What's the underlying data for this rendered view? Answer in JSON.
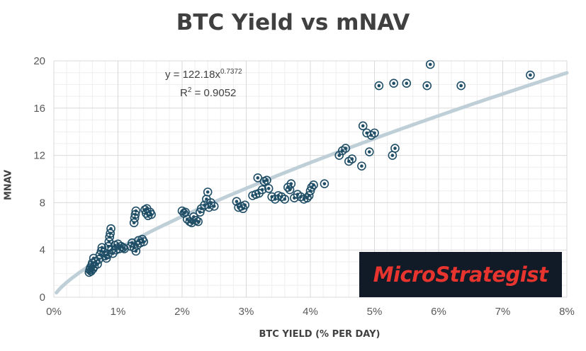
{
  "chart_data": {
    "type": "scatter",
    "title": "BTC Yield vs mNAV",
    "xlabel": "BTC YIELD (% PER DAY)",
    "ylabel": "MNAV",
    "xlim": [
      0,
      8
    ],
    "ylim": [
      0,
      20
    ],
    "x_ticks": [
      "0%",
      "1%",
      "2%",
      "3%",
      "4%",
      "5%",
      "6%",
      "7%",
      "8%"
    ],
    "y_ticks": [
      "0",
      "4",
      "8",
      "12",
      "16",
      "20"
    ],
    "grid": true,
    "trendline": {
      "type": "power",
      "coefficient": 122.18,
      "exponent": 0.7372,
      "equation_prefix": "y = 122.18x",
      "equation_exponent": "0.7372",
      "r2_prefix": "R",
      "r2_exponent": "2",
      "r2_value": " = 0.9052"
    },
    "points": [
      {
        "x": 0.55,
        "y": 2.1
      },
      {
        "x": 0.56,
        "y": 2.3
      },
      {
        "x": 0.57,
        "y": 2.5
      },
      {
        "x": 0.58,
        "y": 2.2
      },
      {
        "x": 0.59,
        "y": 2.7
      },
      {
        "x": 0.6,
        "y": 2.9
      },
      {
        "x": 0.61,
        "y": 2.4
      },
      {
        "x": 0.62,
        "y": 3.3
      },
      {
        "x": 0.63,
        "y": 2.6
      },
      {
        "x": 0.65,
        "y": 3.0
      },
      {
        "x": 0.68,
        "y": 2.8
      },
      {
        "x": 0.7,
        "y": 3.2
      },
      {
        "x": 0.72,
        "y": 3.6
      },
      {
        "x": 0.74,
        "y": 3.9
      },
      {
        "x": 0.75,
        "y": 4.2
      },
      {
        "x": 0.78,
        "y": 3.8
      },
      {
        "x": 0.8,
        "y": 3.5
      },
      {
        "x": 0.82,
        "y": 3.3
      },
      {
        "x": 0.84,
        "y": 3.6
      },
      {
        "x": 0.85,
        "y": 4.3
      },
      {
        "x": 0.86,
        "y": 4.7
      },
      {
        "x": 0.87,
        "y": 5.1
      },
      {
        "x": 0.88,
        "y": 5.4
      },
      {
        "x": 0.89,
        "y": 5.8
      },
      {
        "x": 0.9,
        "y": 4.0
      },
      {
        "x": 0.92,
        "y": 3.7
      },
      {
        "x": 0.95,
        "y": 4.4
      },
      {
        "x": 0.97,
        "y": 4.0
      },
      {
        "x": 1.0,
        "y": 4.5
      },
      {
        "x": 1.02,
        "y": 4.1
      },
      {
        "x": 1.05,
        "y": 4.3
      },
      {
        "x": 1.08,
        "y": 4.2
      },
      {
        "x": 1.1,
        "y": 4.1
      },
      {
        "x": 1.2,
        "y": 4.3
      },
      {
        "x": 1.22,
        "y": 4.6
      },
      {
        "x": 1.25,
        "y": 4.2
      },
      {
        "x": 1.28,
        "y": 3.9
      },
      {
        "x": 1.3,
        "y": 4.4
      },
      {
        "x": 1.32,
        "y": 4.8
      },
      {
        "x": 1.25,
        "y": 6.3
      },
      {
        "x": 1.26,
        "y": 6.7
      },
      {
        "x": 1.27,
        "y": 7.0
      },
      {
        "x": 1.28,
        "y": 7.3
      },
      {
        "x": 1.35,
        "y": 4.6
      },
      {
        "x": 1.38,
        "y": 4.9
      },
      {
        "x": 1.4,
        "y": 4.7
      },
      {
        "x": 1.42,
        "y": 7.4
      },
      {
        "x": 1.44,
        "y": 7.1
      },
      {
        "x": 1.45,
        "y": 7.5
      },
      {
        "x": 1.47,
        "y": 6.9
      },
      {
        "x": 1.5,
        "y": 7.2
      },
      {
        "x": 1.52,
        "y": 7.0
      },
      {
        "x": 2.0,
        "y": 7.3
      },
      {
        "x": 2.03,
        "y": 7.1
      },
      {
        "x": 2.05,
        "y": 7.2
      },
      {
        "x": 2.08,
        "y": 6.6
      },
      {
        "x": 2.12,
        "y": 6.4
      },
      {
        "x": 2.15,
        "y": 6.3
      },
      {
        "x": 2.18,
        "y": 6.8
      },
      {
        "x": 2.22,
        "y": 6.5
      },
      {
        "x": 2.25,
        "y": 6.4
      },
      {
        "x": 2.28,
        "y": 7.2
      },
      {
        "x": 2.3,
        "y": 7.5
      },
      {
        "x": 2.35,
        "y": 7.8
      },
      {
        "x": 2.38,
        "y": 8.3
      },
      {
        "x": 2.4,
        "y": 8.9
      },
      {
        "x": 2.42,
        "y": 7.6
      },
      {
        "x": 2.45,
        "y": 8.0
      },
      {
        "x": 2.5,
        "y": 7.7
      },
      {
        "x": 2.85,
        "y": 8.1
      },
      {
        "x": 2.88,
        "y": 7.6
      },
      {
        "x": 2.92,
        "y": 7.7
      },
      {
        "x": 2.95,
        "y": 7.5
      },
      {
        "x": 2.98,
        "y": 7.8
      },
      {
        "x": 3.1,
        "y": 8.6
      },
      {
        "x": 3.15,
        "y": 8.7
      },
      {
        "x": 3.18,
        "y": 10.1
      },
      {
        "x": 3.2,
        "y": 8.8
      },
      {
        "x": 3.25,
        "y": 9.1
      },
      {
        "x": 3.28,
        "y": 9.8
      },
      {
        "x": 3.32,
        "y": 9.9
      },
      {
        "x": 3.35,
        "y": 9.2
      },
      {
        "x": 3.4,
        "y": 8.5
      },
      {
        "x": 3.45,
        "y": 8.3
      },
      {
        "x": 3.5,
        "y": 8.6
      },
      {
        "x": 3.55,
        "y": 8.5
      },
      {
        "x": 3.6,
        "y": 8.3
      },
      {
        "x": 3.65,
        "y": 9.3
      },
      {
        "x": 3.68,
        "y": 9.1
      },
      {
        "x": 3.7,
        "y": 9.6
      },
      {
        "x": 3.75,
        "y": 8.4
      },
      {
        "x": 3.8,
        "y": 8.7
      },
      {
        "x": 3.85,
        "y": 8.5
      },
      {
        "x": 3.9,
        "y": 8.3
      },
      {
        "x": 3.95,
        "y": 8.4
      },
      {
        "x": 3.98,
        "y": 8.6
      },
      {
        "x": 4.0,
        "y": 9.0
      },
      {
        "x": 4.02,
        "y": 9.3
      },
      {
        "x": 4.05,
        "y": 9.5
      },
      {
        "x": 4.22,
        "y": 9.6
      },
      {
        "x": 4.45,
        "y": 12.0
      },
      {
        "x": 4.5,
        "y": 12.4
      },
      {
        "x": 4.55,
        "y": 12.6
      },
      {
        "x": 4.6,
        "y": 11.5
      },
      {
        "x": 4.65,
        "y": 11.7
      },
      {
        "x": 4.8,
        "y": 11.1
      },
      {
        "x": 4.82,
        "y": 14.5
      },
      {
        "x": 4.88,
        "y": 13.9
      },
      {
        "x": 4.92,
        "y": 12.3
      },
      {
        "x": 4.95,
        "y": 13.7
      },
      {
        "x": 5.0,
        "y": 13.9
      },
      {
        "x": 5.07,
        "y": 17.9
      },
      {
        "x": 5.28,
        "y": 12.0
      },
      {
        "x": 5.3,
        "y": 18.1
      },
      {
        "x": 5.32,
        "y": 12.6
      },
      {
        "x": 5.5,
        "y": 18.1
      },
      {
        "x": 5.82,
        "y": 17.9
      },
      {
        "x": 5.87,
        "y": 19.7
      },
      {
        "x": 6.35,
        "y": 17.9
      },
      {
        "x": 7.43,
        "y": 18.8
      }
    ]
  },
  "logo": {
    "text": "MicroStrategist"
  },
  "colors": {
    "marker": "#1f4e66",
    "trendline": "#bfcfd8",
    "grid_major": "#d9d9d9",
    "grid_minor": "#eeeeee",
    "logo_bg": "#101b27",
    "logo_text": "#e8342e"
  }
}
